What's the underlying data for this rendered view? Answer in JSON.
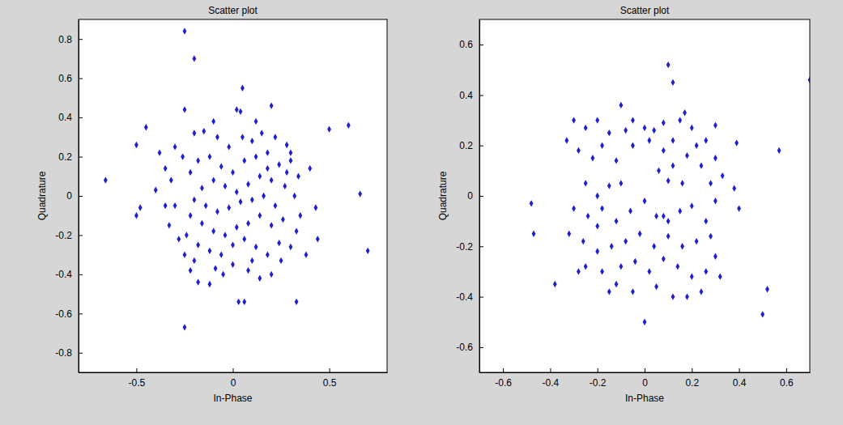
{
  "chart_data": [
    {
      "type": "scatter",
      "title": "Scatter plot",
      "x_label": "In-Phase",
      "y_label": "Quadrature",
      "color": "#1f1fd1",
      "marker": "diamond",
      "xlim": [
        -0.8,
        0.8
      ],
      "ylim": [
        -0.9,
        0.9
      ],
      "xticks": [
        -0.5,
        0,
        0.5
      ],
      "yticks": [
        -0.8,
        -0.6,
        -0.4,
        -0.2,
        0,
        0.2,
        0.4,
        0.6,
        0.8
      ],
      "x": [
        -0.25,
        -0.2,
        -0.66,
        -0.5,
        -0.45,
        -0.5,
        -0.48,
        0.6,
        0.66,
        0.7,
        0.5,
        -0.25,
        0.03,
        0.06,
        0.33,
        0.44,
        0.43,
        0.4,
        0.05,
        0.02,
        -0.25,
        0.2,
        0.04,
        -0.38,
        -0.35,
        -0.32,
        -0.4,
        -0.3,
        -0.33,
        -0.28,
        -0.25,
        -0.22,
        -0.18,
        -0.12,
        -0.05,
        0.0,
        0.08,
        0.14,
        0.2,
        0.25,
        0.3,
        0.33,
        0.35,
        0.32,
        0.34,
        0.3,
        0.28,
        0.22,
        0.15,
        0.1,
        0.05,
        -0.02,
        -0.08,
        -0.15,
        -0.2,
        -0.26,
        -0.22,
        -0.18,
        -0.12,
        -0.06,
        0.0,
        0.06,
        0.12,
        0.18,
        0.24,
        0.2,
        0.14,
        0.08,
        0.02,
        -0.04,
        -0.1,
        -0.16,
        -0.2,
        -0.14,
        -0.08,
        -0.02,
        0.04,
        0.1,
        0.16,
        0.22,
        0.27,
        0.26,
        0.2,
        0.14,
        0.08,
        0.02,
        -0.04,
        -0.1,
        -0.16,
        -0.22,
        -0.24,
        -0.18,
        -0.12,
        -0.06,
        0.0,
        0.06,
        0.12,
        0.18,
        0.24,
        0.1,
        -0.09,
        -0.2,
        0.28,
        0.3,
        0.18,
        -0.3,
        -0.1,
        0.12,
        -0.35,
        0.38
      ],
      "values": [
        0.84,
        0.7,
        0.08,
        0.26,
        0.35,
        -0.1,
        -0.06,
        0.36,
        0.01,
        -0.28,
        0.34,
        -0.67,
        -0.54,
        -0.54,
        -0.54,
        -0.22,
        -0.06,
        0.14,
        0.55,
        0.44,
        0.44,
        0.46,
        0.43,
        0.22,
        0.14,
        0.08,
        0.03,
        -0.05,
        -0.15,
        -0.22,
        -0.3,
        -0.38,
        -0.44,
        -0.45,
        -0.4,
        -0.35,
        -0.38,
        -0.42,
        -0.4,
        -0.33,
        -0.26,
        -0.18,
        -0.1,
        0.0,
        0.1,
        0.18,
        0.26,
        0.3,
        0.32,
        0.28,
        0.3,
        0.25,
        0.3,
        0.33,
        0.32,
        0.2,
        0.12,
        0.18,
        0.2,
        0.15,
        0.12,
        0.18,
        0.2,
        0.22,
        0.16,
        0.08,
        0.1,
        0.06,
        0.02,
        0.05,
        0.08,
        0.04,
        -0.02,
        -0.05,
        -0.08,
        -0.06,
        -0.03,
        -0.02,
        0.0,
        -0.05,
        0.05,
        -0.12,
        -0.15,
        -0.1,
        -0.14,
        -0.16,
        -0.2,
        -0.18,
        -0.14,
        -0.1,
        -0.2,
        -0.25,
        -0.28,
        -0.3,
        -0.25,
        -0.22,
        -0.26,
        -0.3,
        -0.24,
        -0.33,
        -0.37,
        -0.33,
        0.12,
        0.22,
        0.14,
        0.25,
        0.38,
        0.38,
        -0.05,
        -0.3
      ]
    },
    {
      "type": "scatter",
      "title": "Scatter plot",
      "x_label": "In-Phase",
      "y_label": "Quadrature",
      "color": "#1f1fd1",
      "marker": "diamond",
      "xlim": [
        -0.7,
        0.7
      ],
      "ylim": [
        -0.7,
        0.7
      ],
      "xticks": [
        -0.6,
        -0.4,
        -0.2,
        0,
        0.2,
        0.4,
        0.6
      ],
      "yticks": [
        -0.6,
        -0.4,
        -0.2,
        0,
        0.2,
        0.4,
        0.6
      ],
      "x": [
        0.7,
        0.57,
        0.52,
        0.5,
        -0.48,
        -0.47,
        -0.38,
        0.1,
        0.12,
        0.39,
        0.38,
        0.4,
        0.0,
        -0.3,
        -0.33,
        -0.1,
        -0.25,
        -0.2,
        -0.15,
        -0.05,
        0.0,
        0.04,
        0.08,
        0.15,
        0.2,
        0.26,
        0.3,
        -0.28,
        -0.22,
        -0.18,
        -0.12,
        -0.05,
        0.02,
        0.08,
        0.12,
        0.18,
        0.24,
        0.3,
        0.1,
        0.16,
        -0.25,
        -0.2,
        -0.15,
        -0.3,
        -0.24,
        -0.18,
        -0.12,
        -0.06,
        0.0,
        0.05,
        0.1,
        0.15,
        0.2,
        0.26,
        0.3,
        0.28,
        -0.32,
        -0.26,
        -0.2,
        -0.14,
        -0.08,
        -0.02,
        0.04,
        0.1,
        0.16,
        0.22,
        0.28,
        -0.25,
        -0.18,
        -0.1,
        -0.04,
        0.02,
        0.08,
        0.14,
        0.2,
        0.26,
        0.3,
        -0.12,
        -0.05,
        0.05,
        0.12,
        0.18,
        0.24,
        -0.2,
        0.08,
        0.12,
        -0.08,
        -0.1,
        0.06,
        0.22,
        0.33,
        -0.28,
        0.32,
        -0.15,
        0.17
      ],
      "values": [
        0.46,
        0.18,
        -0.37,
        -0.47,
        -0.03,
        -0.15,
        -0.35,
        0.52,
        0.45,
        0.21,
        0.03,
        -0.05,
        -0.5,
        0.3,
        0.22,
        0.36,
        0.27,
        0.3,
        0.25,
        0.3,
        0.27,
        0.26,
        0.29,
        0.3,
        0.27,
        0.22,
        0.28,
        0.18,
        0.15,
        0.2,
        0.14,
        0.2,
        0.22,
        0.18,
        0.12,
        0.16,
        0.12,
        0.15,
        0.06,
        0.05,
        0.05,
        0.0,
        0.04,
        -0.05,
        -0.08,
        -0.05,
        -0.1,
        -0.06,
        -0.02,
        -0.08,
        -0.1,
        -0.06,
        -0.04,
        -0.1,
        -0.02,
        0.05,
        -0.15,
        -0.18,
        -0.22,
        -0.2,
        -0.18,
        -0.15,
        -0.2,
        -0.16,
        -0.2,
        -0.18,
        -0.16,
        -0.28,
        -0.3,
        -0.28,
        -0.26,
        -0.3,
        -0.25,
        -0.28,
        -0.32,
        -0.3,
        -0.24,
        -0.35,
        -0.38,
        -0.36,
        -0.4,
        -0.4,
        -0.38,
        -0.12,
        -0.08,
        0.22,
        0.26,
        0.05,
        0.1,
        0.2,
        0.08,
        -0.3,
        -0.32,
        -0.38,
        0.33
      ]
    }
  ]
}
